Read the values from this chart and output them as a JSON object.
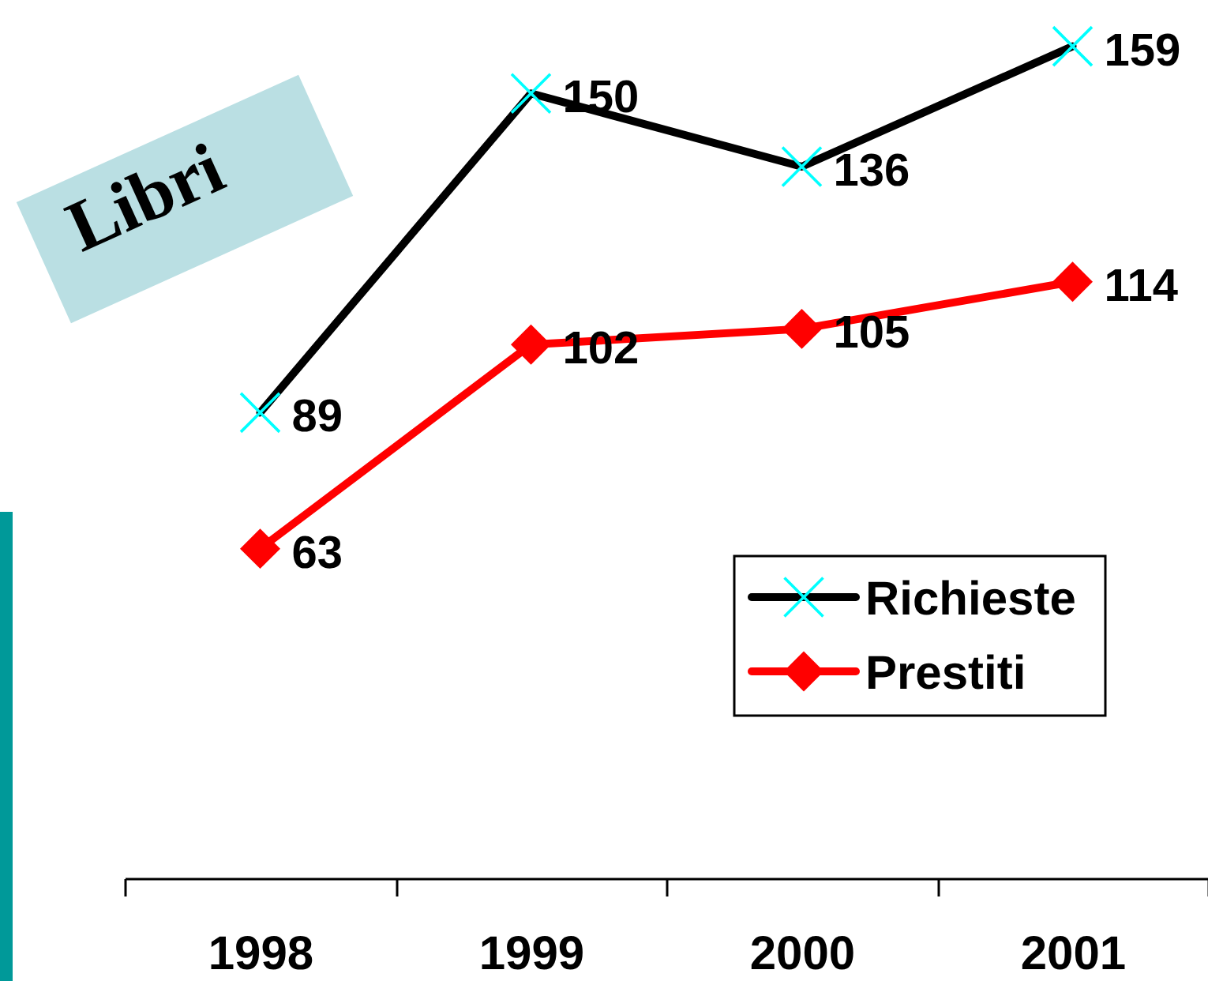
{
  "chart_data": {
    "type": "line",
    "title": "Libri",
    "categories": [
      "1998",
      "1999",
      "2000",
      "2001"
    ],
    "series": [
      {
        "name": "Richieste",
        "color": "#000000",
        "colors": [
          "#00ffff",
          "#00ffff",
          "#00ffff",
          "#00ffff"
        ],
        "marker": "cross",
        "values": [
          89,
          150,
          136,
          159
        ]
      },
      {
        "name": "Prestiti",
        "color": "#ff0000",
        "marker": "diamond",
        "values": [
          63,
          102,
          105,
          114
        ]
      }
    ],
    "data_labels": true,
    "legend": "right",
    "tick_labels": "x"
  }
}
